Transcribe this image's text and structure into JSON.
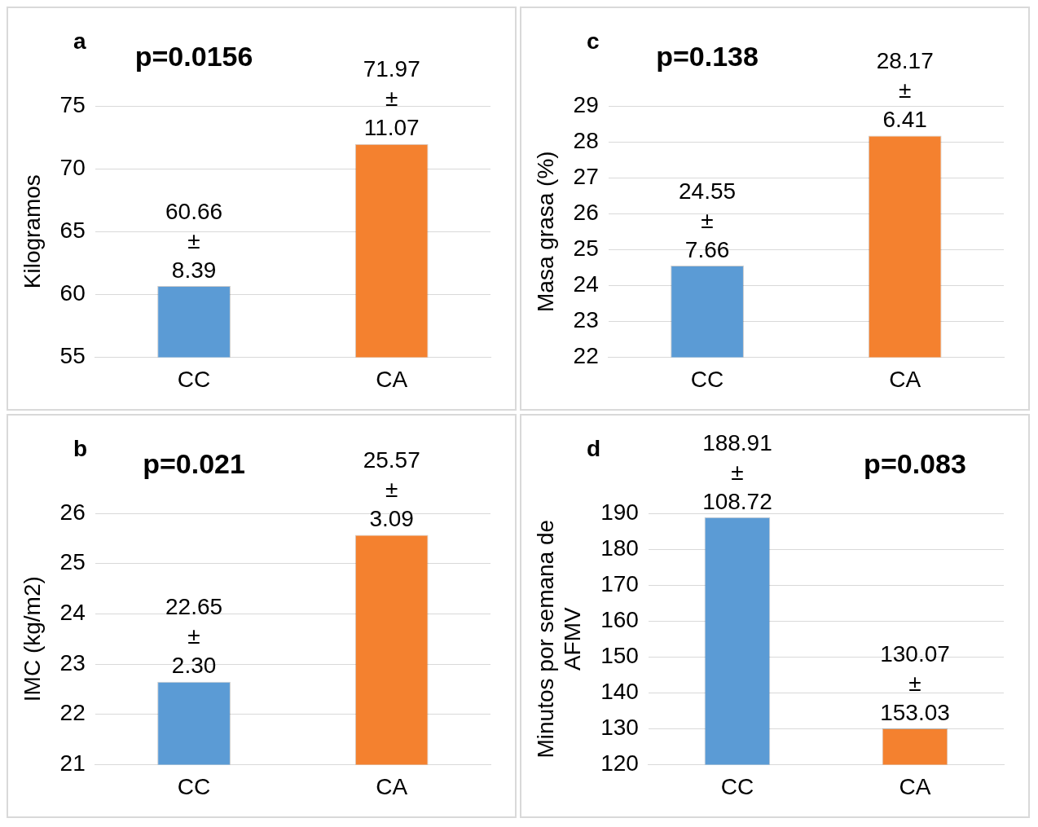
{
  "chart_data": [
    {
      "type": "bar",
      "title": "a",
      "ylabel": "Kilogramos",
      "categories": [
        "CC",
        "CA"
      ],
      "values": [
        60.66,
        71.97
      ],
      "colors": [
        "#5b9bd5",
        "#f4812f"
      ],
      "value_labels": [
        "60.66\n±\n8.39",
        "71.97\n±\n11.07"
      ],
      "ylim": [
        55,
        75
      ],
      "yticks": [
        55,
        60,
        65,
        70,
        75
      ],
      "grid": "y",
      "legend": false,
      "annotations": [
        "p=0.0156"
      ]
    },
    {
      "type": "bar",
      "title": "c",
      "ylabel": "Masa grasa (%)",
      "categories": [
        "CC",
        "CA"
      ],
      "values": [
        24.55,
        28.17
      ],
      "colors": [
        "#5b9bd5",
        "#f4812f"
      ],
      "value_labels": [
        "24.55\n±\n7.66",
        "28.17\n±\n6.41"
      ],
      "ylim": [
        22,
        29
      ],
      "yticks": [
        22,
        23,
        24,
        25,
        26,
        27,
        28,
        29
      ],
      "grid": "y",
      "legend": false,
      "annotations": [
        "p=0.138"
      ]
    },
    {
      "type": "bar",
      "title": "b",
      "ylabel": "IMC (kg/m2)",
      "categories": [
        "CC",
        "CA"
      ],
      "values": [
        22.65,
        25.57
      ],
      "colors": [
        "#5b9bd5",
        "#f4812f"
      ],
      "value_labels": [
        "22.65\n±\n2.30",
        "25.57\n±\n3.09"
      ],
      "ylim": [
        21,
        26
      ],
      "yticks": [
        21,
        22,
        23,
        24,
        25,
        26
      ],
      "grid": "y",
      "legend": false,
      "annotations": [
        "p=0.021"
      ]
    },
    {
      "type": "bar",
      "title": "d",
      "ylabel": "Minutos por semana de\nAFMV",
      "categories": [
        "CC",
        "CA"
      ],
      "values": [
        188.91,
        130.07
      ],
      "colors": [
        "#5b9bd5",
        "#f4812f"
      ],
      "value_labels": [
        "188.91\n±\n108.72",
        "130.07\n±\n153.03"
      ],
      "ylim": [
        120,
        190
      ],
      "yticks": [
        120,
        130,
        140,
        150,
        160,
        170,
        180,
        190
      ],
      "grid": "y",
      "legend": false,
      "annotations": [
        "p=0.083"
      ]
    }
  ]
}
